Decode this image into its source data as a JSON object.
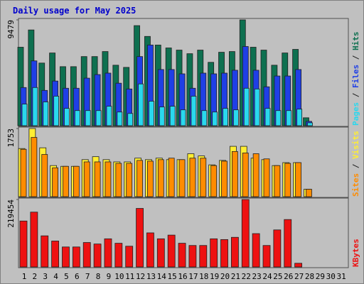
{
  "chart_data": [
    {
      "type": "bar",
      "title": "Daily usage for May 2025",
      "ylim": [
        0,
        9479
      ],
      "yticks": [
        9479
      ],
      "legend_separator": " / ",
      "series": [
        {
          "name": "Hits",
          "color": "#0e7050",
          "values": [
            7030,
            8578,
            5611,
            6514,
            5289,
            5289,
            6192,
            6192,
            6643,
            5418,
            5224,
            8965,
            7998,
            7224,
            6966,
            6772,
            6450,
            6772,
            5676,
            6579,
            6643,
            9479,
            7030,
            6772,
            5418,
            6514,
            6837,
            709,
            null,
            null,
            null
          ]
        },
        {
          "name": "Files",
          "color": "#1f3fe6",
          "values": [
            3418,
            5805,
            3160,
            3999,
            3354,
            3354,
            4257,
            4579,
            4708,
            3805,
            3289,
            6192,
            7224,
            5031,
            5031,
            4644,
            3354,
            4708,
            4644,
            4708,
            4966,
            7095,
            4966,
            3483,
            4450,
            4450,
            5031,
            387,
            null,
            null,
            null
          ]
        },
        {
          "name": "Pages",
          "color": "#2ad8ee",
          "values": [
            1935,
            3418,
            2128,
            2644,
            1548,
            1354,
            1354,
            1354,
            1741,
            1225,
            1096,
            3741,
            2193,
            1677,
            1741,
            1419,
            2644,
            1354,
            1225,
            1548,
            1419,
            3354,
            3289,
            1548,
            1354,
            1354,
            1483,
            258,
            null,
            null,
            null
          ]
        }
      ]
    },
    {
      "type": "bar",
      "ylim": [
        0,
        1753
      ],
      "yticks": [
        1753
      ],
      "legend_separator": " / ",
      "series": [
        {
          "name": "Visits",
          "color": "#ffee33",
          "values": [
            1238,
            1753,
            1257,
            800,
            781,
            781,
            953,
            1029,
            953,
            895,
            895,
            991,
            953,
            991,
            953,
            953,
            1105,
            1048,
            819,
            933,
            1295,
            1295,
            991,
            953,
            800,
            876,
            876,
            191,
            null,
            null,
            null
          ]
        },
        {
          "name": "Sites",
          "color": "#ff8c00",
          "values": [
            1219,
            1524,
            1086,
            743,
            781,
            781,
            895,
            895,
            895,
            857,
            857,
            933,
            914,
            953,
            991,
            953,
            991,
            991,
            800,
            914,
            1162,
            1124,
            1105,
            972,
            800,
            857,
            876,
            191,
            null,
            null,
            null
          ]
        }
      ]
    },
    {
      "type": "bar",
      "ylim": [
        0,
        219454
      ],
      "yticks": [
        219454
      ],
      "categories": [
        "1",
        "2",
        "3",
        "4",
        "5",
        "6",
        "7",
        "8",
        "9",
        "10",
        "11",
        "12",
        "13",
        "14",
        "15",
        "16",
        "17",
        "18",
        "19",
        "20",
        "21",
        "22",
        "23",
        "24",
        "25",
        "26",
        "27",
        "28",
        "29",
        "30",
        "31"
      ],
      "category_colors": [
        "#000",
        "#000",
        "#2e8b57",
        "#2e8b57",
        "#000",
        "#000",
        "#000",
        "#000",
        "#000",
        "#2e8b57",
        "#2e8b57",
        "#000",
        "#000",
        "#000",
        "#000",
        "#000",
        "#2e8b57",
        "#2e8b57",
        "#000",
        "#000",
        "#000",
        "#000",
        "#000",
        "#2e8b57",
        "#2e8b57",
        "#000",
        "#000",
        "#000",
        "#000",
        "#000",
        "#2e8b57"
      ],
      "series": [
        {
          "name": "KBytes",
          "color": "#ee1111",
          "values": [
            149519,
            178458,
            101287,
            84406,
            65113,
            65113,
            79583,
            74760,
            91641,
            77171,
            67525,
            190516,
            110934,
            91641,
            103699,
            77171,
            69936,
            69936,
            91641,
            89229,
            96464,
            219454,
            108522,
            69936,
            120580,
            154342,
            12058,
            null,
            null,
            null,
            null
          ]
        }
      ]
    }
  ]
}
